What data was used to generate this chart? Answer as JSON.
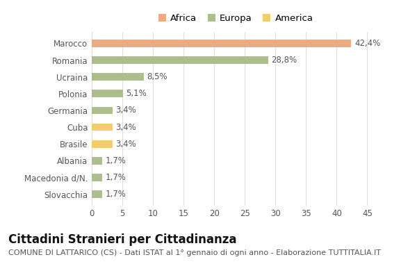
{
  "categories": [
    "Marocco",
    "Romania",
    "Ucraina",
    "Polonia",
    "Germania",
    "Cuba",
    "Brasile",
    "Albania",
    "Macedonia d/N.",
    "Slovacchia"
  ],
  "values": [
    42.4,
    28.8,
    8.5,
    5.1,
    3.4,
    3.4,
    3.4,
    1.7,
    1.7,
    1.7
  ],
  "labels": [
    "42,4%",
    "28,8%",
    "8,5%",
    "5,1%",
    "3,4%",
    "3,4%",
    "3,4%",
    "1,7%",
    "1,7%",
    "1,7%"
  ],
  "colors": [
    "#EDAB80",
    "#ABBE8C",
    "#ABBE8C",
    "#ABBE8C",
    "#ABBE8C",
    "#F2CC6E",
    "#F2CC6E",
    "#ABBE8C",
    "#ABBE8C",
    "#ABBE8C"
  ],
  "legend_labels": [
    "Africa",
    "Europa",
    "America"
  ],
  "legend_colors": [
    "#EDAB80",
    "#ABBE8C",
    "#F2CC6E"
  ],
  "title": "Cittadini Stranieri per Cittadinanza",
  "subtitle": "COMUNE DI LATTARICO (CS) - Dati ISTAT al 1° gennaio di ogni anno - Elaborazione TUTTITALIA.IT",
  "xlim": [
    0,
    47
  ],
  "xticks": [
    0,
    5,
    10,
    15,
    20,
    25,
    30,
    35,
    40,
    45
  ],
  "bg_color": "#ffffff",
  "grid_color": "#dddddd",
  "bar_height": 0.45,
  "title_fontsize": 12,
  "subtitle_fontsize": 8,
  "tick_fontsize": 8.5,
  "label_fontsize": 8.5
}
